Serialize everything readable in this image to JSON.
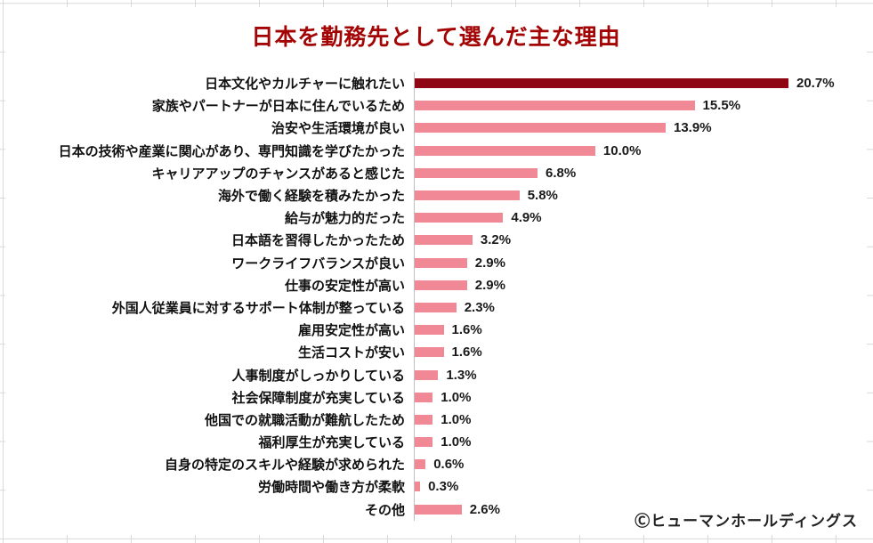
{
  "page": {
    "copyright": "Ⓒヒューマンホールディングス"
  },
  "chart_data": {
    "type": "bar",
    "orientation": "horizontal",
    "title": "日本を勤務先として選んだ主な理由",
    "categories": [
      "日本文化やカルチャーに触れたい",
      "家族やパートナーが日本に住んでいるため",
      "治安や生活環境が良い",
      "日本の技術や産業に関心があり、専門知識を学びたかった",
      "キャリアアップのチャンスがあると感じた",
      "海外で働く経験を積みたかった",
      "給与が魅力的だった",
      "日本語を習得したかったため",
      "ワークライフバランスが良い",
      "仕事の安定性が高い",
      "外国人従業員に対するサポート体制が整っている",
      "雇用安定性が高い",
      "生活コストが安い",
      "人事制度がしっかりしている",
      "社会保障制度が充実している",
      "他国での就職活動が難航したため",
      "福利厚生が充実している",
      "自身の特定のスキルや経験が求められた",
      "労働時間や働き方が柔軟",
      "その他"
    ],
    "values": [
      20.7,
      15.5,
      13.9,
      10.0,
      6.8,
      5.8,
      4.9,
      3.2,
      2.9,
      2.9,
      2.3,
      1.6,
      1.6,
      1.3,
      1.0,
      1.0,
      1.0,
      0.6,
      0.3,
      2.6
    ],
    "value_suffix": "%",
    "highlight_index": 0,
    "xlim": [
      0,
      22
    ],
    "grid": false,
    "legend": false,
    "data_labels": "outside-end",
    "colors": {
      "highlight_bar": "#8f0713",
      "default_bar": "#f08896",
      "title": "#a30505",
      "axis_line": "#bfbfbf"
    }
  }
}
